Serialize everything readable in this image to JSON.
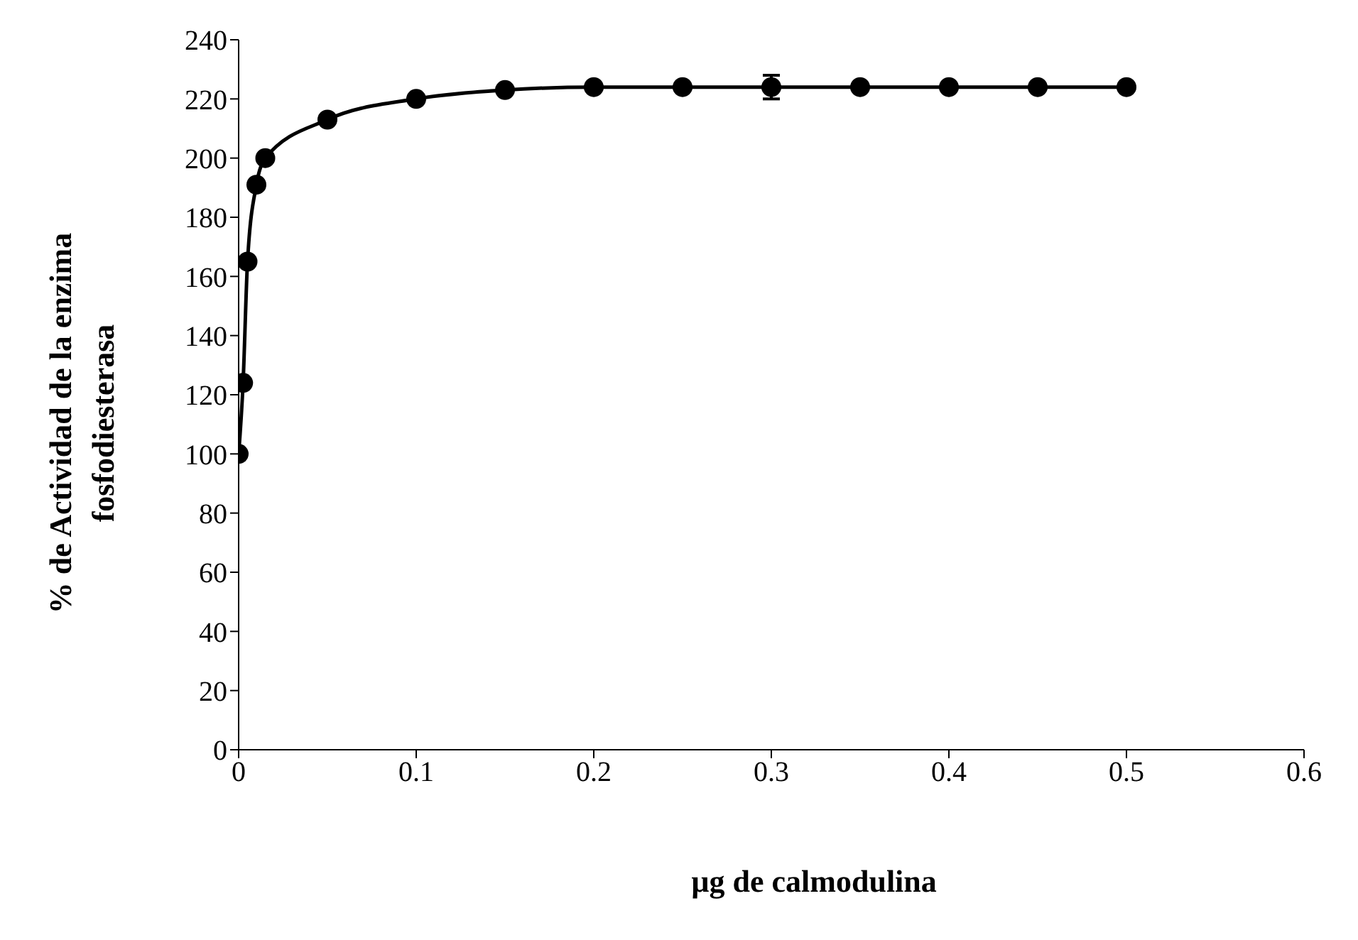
{
  "chart_data": {
    "type": "line",
    "xlabel": "µg de calmodulina",
    "ylabel": "% de Actividad de la enzima fosfodiesterasa",
    "x": [
      0,
      0.0025,
      0.005,
      0.01,
      0.015,
      0.05,
      0.1,
      0.15,
      0.2,
      0.25,
      0.3,
      0.35,
      0.4,
      0.45,
      0.5
    ],
    "series": [
      {
        "color": "#000000",
        "values": [
          100,
          124,
          165,
          191,
          200,
          213,
          220,
          223,
          224,
          224,
          224,
          224,
          224,
          224,
          224
        ],
        "errors": [
          null,
          null,
          null,
          null,
          null,
          null,
          null,
          null,
          null,
          null,
          4,
          null,
          null,
          null,
          null
        ]
      }
    ],
    "xlim": [
      0,
      0.6
    ],
    "xticks": [
      0,
      0.1,
      0.2,
      0.3,
      0.4,
      0.5,
      0.6
    ],
    "ylim": [
      0,
      240
    ],
    "yticks": [
      0,
      20,
      40,
      60,
      80,
      100,
      120,
      140,
      160,
      180,
      200,
      220,
      240
    ],
    "marker": "circle",
    "line_style": "solid",
    "grid": false,
    "legend": false
  }
}
